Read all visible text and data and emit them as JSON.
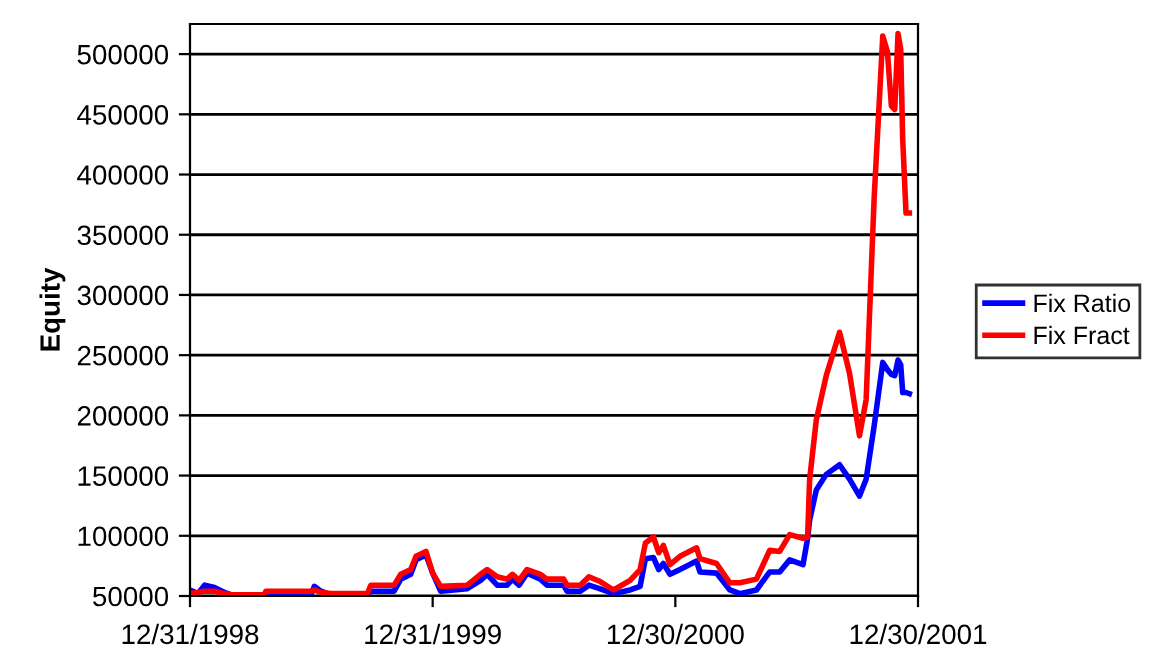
{
  "chart_data": {
    "type": "line",
    "ylabel": "Equity",
    "x": [
      "1998-12-31",
      "1999-01-12",
      "1999-01-22",
      "1999-02-06",
      "1999-02-21",
      "1999-03-03",
      "1999-04-22",
      "1999-04-24",
      "1999-07-01",
      "1999-07-06",
      "1999-07-16",
      "1999-07-31",
      "1999-09-24",
      "1999-09-29",
      "1999-11-03",
      "1999-11-13",
      "1999-11-28",
      "1999-12-06",
      "1999-12-21",
      "1999-12-31",
      "2000-01-12",
      "2000-02-21",
      "2000-03-12",
      "2000-03-22",
      "2000-04-06",
      "2000-04-21",
      "2000-04-29",
      "2000-05-09",
      "2000-05-21",
      "2000-06-10",
      "2000-06-20",
      "2000-07-15",
      "2000-07-20",
      "2000-08-09",
      "2000-08-22",
      "2000-09-08",
      "2000-09-28",
      "2000-10-23",
      "2000-11-07",
      "2000-11-15",
      "2000-11-27",
      "2000-12-05",
      "2000-12-12",
      "2000-12-22",
      "2001-01-06",
      "2001-01-31",
      "2001-02-05",
      "2001-03-02",
      "2001-03-22",
      "2001-04-06",
      "2001-05-01",
      "2001-05-21",
      "2001-06-05",
      "2001-06-20",
      "2001-07-10",
      "2001-07-17",
      "2001-07-20",
      "2001-07-30",
      "2001-08-14",
      "2001-09-03",
      "2001-09-18",
      "2001-10-03",
      "2001-10-13",
      "2001-10-25",
      "2001-11-07",
      "2001-11-14",
      "2001-11-20",
      "2001-11-25",
      "2001-11-30",
      "2001-12-04",
      "2001-12-07",
      "2001-12-12",
      "2001-12-17"
    ],
    "series": [
      {
        "name": "Fix Ratio",
        "color": "#0000ff",
        "values": [
          55000,
          52000,
          59000,
          57000,
          53000,
          51000,
          51000,
          51000,
          51000,
          58000,
          54000,
          51000,
          51000,
          54000,
          54000,
          64000,
          68000,
          80000,
          84000,
          69000,
          54000,
          56000,
          63000,
          68000,
          59000,
          59000,
          64000,
          59000,
          69000,
          64000,
          59000,
          59000,
          54000,
          54000,
          59000,
          56000,
          52000,
          55000,
          58000,
          81000,
          82000,
          72000,
          77000,
          68000,
          72000,
          79000,
          70000,
          69000,
          55000,
          52000,
          55000,
          70000,
          70000,
          80000,
          76000,
          98000,
          113000,
          138000,
          151000,
          159000,
          147000,
          133000,
          147000,
          191000,
          244000,
          238000,
          234000,
          233000,
          246000,
          242000,
          219000,
          219000,
          218000
        ]
      },
      {
        "name": "Fix Fract",
        "color": "#ff0000",
        "values": [
          52000,
          53000,
          54000,
          54000,
          52000,
          51000,
          51000,
          54000,
          54000,
          55000,
          53000,
          52000,
          52000,
          59000,
          59000,
          68000,
          72000,
          83000,
          87000,
          69000,
          58000,
          59000,
          68000,
          72000,
          66000,
          64000,
          68000,
          63000,
          72000,
          68000,
          64000,
          64000,
          59000,
          59000,
          66000,
          62000,
          55000,
          63000,
          72000,
          94000,
          99000,
          86000,
          92000,
          76000,
          83000,
          90000,
          81000,
          77000,
          61000,
          61000,
          64000,
          88000,
          87000,
          101000,
          98000,
          99000,
          147000,
          196000,
          233000,
          269000,
          235000,
          183000,
          213000,
          380000,
          515000,
          502000,
          457000,
          454000,
          517000,
          504000,
          429000,
          368000,
          368000
        ]
      }
    ],
    "xlim": [
      "1998-12-31",
      "2001-12-30"
    ],
    "xticks": [
      {
        "value": "1998-12-31",
        "label": "12/31/1998"
      },
      {
        "value": "1999-12-31",
        "label": "12/31/1999"
      },
      {
        "value": "2000-12-30",
        "label": "12/30/2000"
      },
      {
        "value": "2001-12-30",
        "label": "12/30/2001"
      }
    ],
    "ylim": [
      50000,
      525000
    ],
    "yticks": [
      50000,
      100000,
      150000,
      200000,
      250000,
      300000,
      350000,
      400000,
      450000,
      500000
    ],
    "grid": "y",
    "legend": "right",
    "marker": "none",
    "line_style": "solid"
  }
}
